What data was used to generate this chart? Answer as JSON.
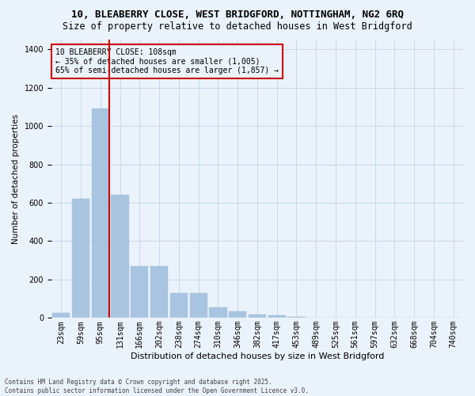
{
  "title_line1": "10, BLEABERRY CLOSE, WEST BRIDGFORD, NOTTINGHAM, NG2 6RQ",
  "title_line2": "Size of property relative to detached houses in West Bridgford",
  "xlabel": "Distribution of detached houses by size in West Bridgford",
  "ylabel": "Number of detached properties",
  "categories": [
    "23sqm",
    "59sqm",
    "95sqm",
    "131sqm",
    "166sqm",
    "202sqm",
    "238sqm",
    "274sqm",
    "310sqm",
    "346sqm",
    "382sqm",
    "417sqm",
    "453sqm",
    "489sqm",
    "525sqm",
    "561sqm",
    "597sqm",
    "632sqm",
    "668sqm",
    "704sqm",
    "740sqm"
  ],
  "values": [
    25,
    620,
    1090,
    640,
    270,
    270,
    130,
    130,
    55,
    35,
    20,
    15,
    5,
    0,
    0,
    0,
    0,
    0,
    0,
    0,
    0
  ],
  "bar_color": "#a8c4e0",
  "bar_edge_color": "#a8c4e0",
  "grid_color": "#c8d8e8",
  "bg_color": "#eaf2fb",
  "vline_x": 2.45,
  "vline_color": "#cc0000",
  "annotation_text": "10 BLEABERRY CLOSE: 108sqm\n← 35% of detached houses are smaller (1,005)\n65% of semi-detached houses are larger (1,857) →",
  "annotation_box_color": "#cc0000",
  "footer_line1": "Contains HM Land Registry data © Crown copyright and database right 2025.",
  "footer_line2": "Contains public sector information licensed under the Open Government Licence v3.0.",
  "ylim": [
    0,
    1450
  ],
  "yticks": [
    0,
    200,
    400,
    600,
    800,
    1000,
    1200,
    1400
  ],
  "title1_fontsize": 9.0,
  "title2_fontsize": 8.5,
  "ylabel_fontsize": 7.5,
  "xlabel_fontsize": 8.0,
  "tick_fontsize": 7.0,
  "ann_fontsize": 7.0
}
